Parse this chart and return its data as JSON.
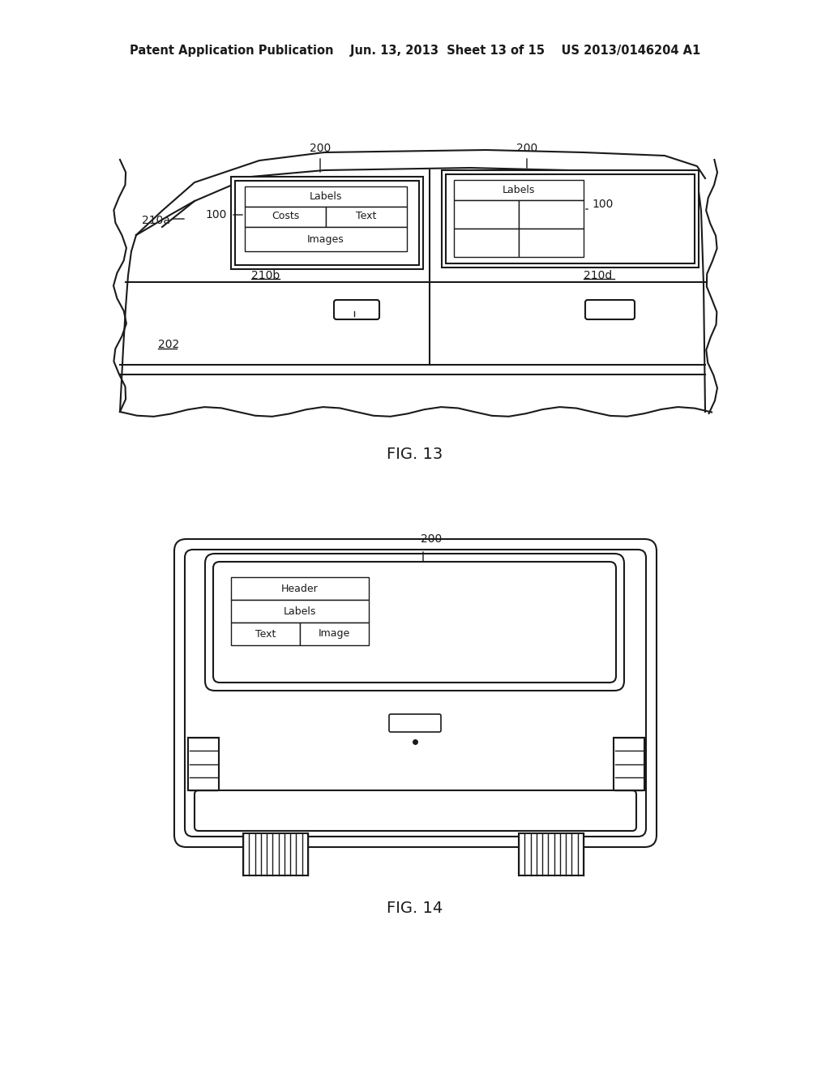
{
  "background_color": "#ffffff",
  "header_text": "Patent Application Publication    Jun. 13, 2013  Sheet 13 of 15    US 2013/0146204 A1",
  "fig13_title": "FIG. 13",
  "fig14_title": "FIG. 14",
  "line_color": "#1a1a1a",
  "text_color": "#1a1a1a",
  "label_fontsize": 10,
  "header_fontsize": 10.5,
  "fig_label_fontsize": 14
}
